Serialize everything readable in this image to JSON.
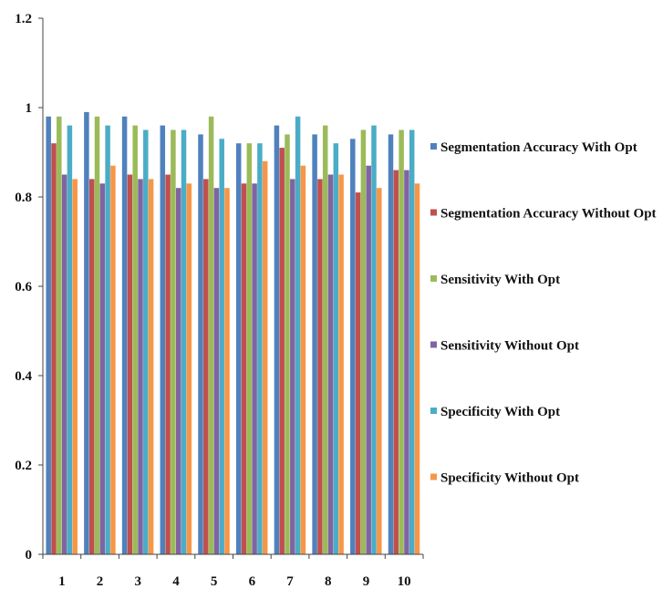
{
  "chart_data": {
    "type": "bar",
    "title": "",
    "xlabel": "",
    "ylabel": "",
    "categories": [
      "1",
      "2",
      "3",
      "4",
      "5",
      "6",
      "7",
      "8",
      "9",
      "10"
    ],
    "ylim": [
      0,
      1.2
    ],
    "yticks": [
      "0",
      "0.2",
      "0.4",
      "0.6",
      "0.8",
      "1",
      "1.2"
    ],
    "grid": false,
    "legend_position": "right",
    "series": [
      {
        "name": "Segmentation Accuracy With Opt",
        "color": "#4f81bd",
        "values": [
          0.98,
          0.99,
          0.98,
          0.96,
          0.94,
          0.92,
          0.96,
          0.94,
          0.93,
          0.94
        ]
      },
      {
        "name": "Segmentation Accuracy Without Opt",
        "color": "#c0504d",
        "values": [
          0.92,
          0.84,
          0.85,
          0.85,
          0.84,
          0.83,
          0.91,
          0.84,
          0.81,
          0.86
        ]
      },
      {
        "name": "Sensitivity With Opt",
        "color": "#9bbb59",
        "values": [
          0.98,
          0.98,
          0.96,
          0.95,
          0.98,
          0.92,
          0.94,
          0.96,
          0.95,
          0.95
        ]
      },
      {
        "name": "Sensitivity Without Opt",
        "color": "#8064a2",
        "values": [
          0.85,
          0.83,
          0.84,
          0.82,
          0.82,
          0.83,
          0.84,
          0.85,
          0.87,
          0.86
        ]
      },
      {
        "name": "Specificity With Opt",
        "color": "#4bacc6",
        "values": [
          0.96,
          0.96,
          0.95,
          0.95,
          0.93,
          0.92,
          0.98,
          0.92,
          0.96,
          0.95
        ]
      },
      {
        "name": "Specificity Without Opt",
        "color": "#f79646",
        "values": [
          0.84,
          0.87,
          0.84,
          0.83,
          0.82,
          0.88,
          0.87,
          0.85,
          0.82,
          0.83
        ]
      }
    ]
  }
}
